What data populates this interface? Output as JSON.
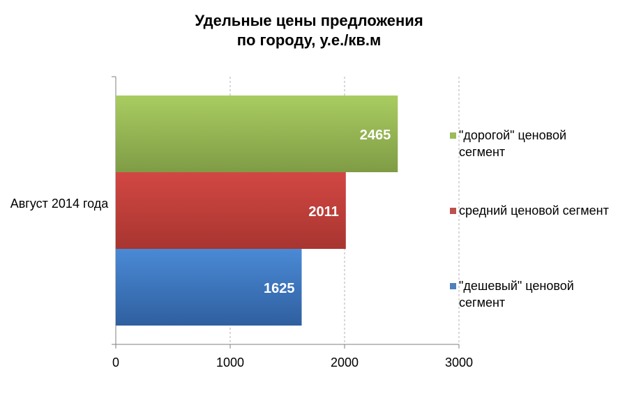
{
  "chart_data": {
    "type": "bar",
    "orientation": "horizontal",
    "title_lines": [
      "Удельные цены предложения",
      "по городу, у.е./кв.м"
    ],
    "categories": [
      "Август 2014 года"
    ],
    "series": [
      {
        "name": "\"дорогой\" ценовой сегмент",
        "values": [
          2465
        ],
        "color": "#9bbb59"
      },
      {
        "name": "средний ценовой сегмент",
        "values": [
          2011
        ],
        "color": "#c0504d"
      },
      {
        "name": "\"дешевый\" ценовой сегмент",
        "values": [
          1625
        ],
        "color": "#4f81bd"
      }
    ],
    "data_labels": [
      "2465",
      "2011",
      "1625"
    ],
    "xlim": [
      0,
      3000
    ],
    "x_ticks": [
      "0",
      "1000",
      "2000",
      "3000"
    ],
    "grid": "vertical dashed",
    "legend_position": "right"
  }
}
